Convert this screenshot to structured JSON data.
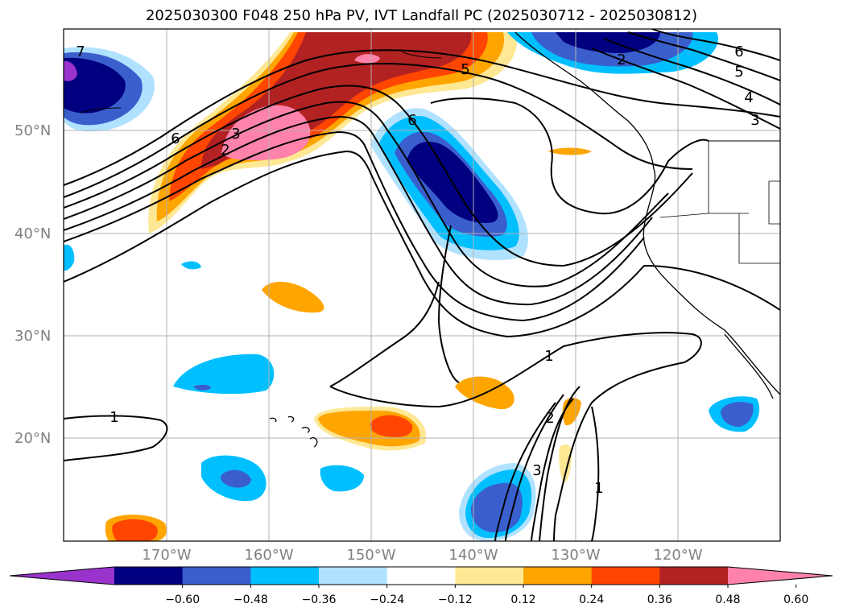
{
  "title": "2025030300 F048 250 hPa PV, IVT Landfall PC (2025030712 - 2025030812)",
  "map": {
    "lat_labels": [
      "50°N",
      "40°N",
      "30°N",
      "20°N"
    ],
    "lon_labels": [
      "170°W",
      "160°W",
      "150°W",
      "140°W",
      "130°W",
      "120°W"
    ],
    "contour_labels": [
      "7",
      "6",
      "2",
      "3",
      "5",
      "6",
      "2",
      "5",
      "4",
      "3",
      "6",
      "1",
      "2",
      "3",
      "1",
      "1"
    ]
  },
  "colorbar": {
    "colors": [
      "#9933cc",
      "#000080",
      "#3a5fcd",
      "#00bfff",
      "#b0e2ff",
      "#ffffff",
      "#ffe894",
      "#ffa500",
      "#ff4500",
      "#b22222",
      "#ff82ab"
    ],
    "tick_labels": [
      "−0.60",
      "−0.48",
      "−0.36",
      "−0.24",
      "−0.12",
      "0.12",
      "0.24",
      "0.36",
      "0.48",
      "0.60"
    ]
  }
}
